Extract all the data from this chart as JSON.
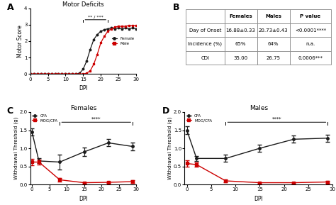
{
  "panel_A": {
    "title": "Motor Deficits",
    "xlabel": "DPI",
    "ylabel": "Motor Score",
    "ylim": [
      0,
      4
    ],
    "xlim": [
      0,
      30
    ],
    "xticks": [
      0,
      5,
      10,
      15,
      20,
      25,
      30
    ],
    "yticks": [
      0,
      1,
      2,
      3,
      4
    ],
    "female_x": [
      0,
      1,
      2,
      3,
      4,
      5,
      6,
      7,
      8,
      9,
      10,
      11,
      12,
      13,
      14,
      15,
      16,
      17,
      18,
      19,
      20,
      21,
      22,
      23,
      24,
      25,
      26,
      27,
      28,
      29,
      30
    ],
    "female_y": [
      0,
      0,
      0,
      0,
      0,
      0,
      0,
      0,
      0,
      0,
      0,
      0,
      0,
      0,
      0.05,
      0.3,
      0.8,
      1.5,
      2.1,
      2.4,
      2.6,
      2.7,
      2.75,
      2.8,
      2.75,
      2.8,
      2.75,
      2.8,
      2.75,
      2.8,
      2.75
    ],
    "male_x": [
      0,
      1,
      2,
      3,
      4,
      5,
      6,
      7,
      8,
      9,
      10,
      11,
      12,
      13,
      14,
      15,
      16,
      17,
      18,
      19,
      20,
      21,
      22,
      23,
      24,
      25,
      26,
      27,
      28,
      29,
      30
    ],
    "male_y": [
      0,
      0,
      0,
      0,
      0,
      0,
      0,
      0,
      0,
      0,
      0,
      0,
      0,
      0,
      0,
      0,
      0.05,
      0.2,
      0.6,
      1.2,
      1.9,
      2.3,
      2.6,
      2.75,
      2.85,
      2.9,
      2.9,
      2.9,
      2.95,
      2.95,
      2.95
    ],
    "female_color": "#1a1a1a",
    "male_color": "#cc0000",
    "bracket_x1": 15,
    "bracket_x2": 22,
    "bracket_y": 3.3,
    "bracket_label": "** / ***"
  },
  "panel_B": {
    "col_labels": [
      "Females",
      "Males",
      "P value"
    ],
    "row_labels": [
      "Day of Onset",
      "Incidence (%)",
      "CDI"
    ],
    "cell_data": [
      [
        "16.88±0.33",
        "20.73±0.43",
        "<0.0001****"
      ],
      [
        "65%",
        "64%",
        "n.a."
      ],
      [
        "35.00",
        "26.75",
        "0.0006***"
      ]
    ]
  },
  "panel_C": {
    "title": "Females",
    "xlabel": "DPI",
    "ylabel": "Withdrawal Threshold (g)",
    "ylim": [
      0,
      2.0
    ],
    "xlim": [
      -0.5,
      30
    ],
    "xticks": [
      0,
      5,
      10,
      15,
      20,
      25,
      30
    ],
    "yticks": [
      0.0,
      0.5,
      1.0,
      1.5,
      2.0
    ],
    "cfa_x": [
      0,
      2,
      8,
      15,
      22,
      29
    ],
    "cfa_y": [
      1.45,
      0.65,
      0.62,
      0.9,
      1.15,
      1.05
    ],
    "cfa_err": [
      0.1,
      0.07,
      0.2,
      0.12,
      0.1,
      0.1
    ],
    "mogcfa_x": [
      0,
      2,
      8,
      15,
      22,
      29
    ],
    "mogcfa_y": [
      0.62,
      0.62,
      0.13,
      0.05,
      0.06,
      0.08
    ],
    "mogcfa_err": [
      0.08,
      0.06,
      0.05,
      0.02,
      0.02,
      0.03
    ],
    "cfa_color": "#1a1a1a",
    "mogcfa_color": "#cc0000",
    "bracket_x1": 8,
    "bracket_x2": 29,
    "bracket_y": 1.72,
    "bracket_label": "****"
  },
  "panel_D": {
    "title": "Males",
    "xlabel": "DPI",
    "ylabel": "Withdrawal Threshold (g)",
    "ylim": [
      0,
      2.0
    ],
    "xlim": [
      -0.5,
      30
    ],
    "xticks": [
      0,
      5,
      10,
      15,
      20,
      25,
      30
    ],
    "yticks": [
      0.0,
      0.5,
      1.0,
      1.5,
      2.0
    ],
    "cfa_x": [
      0,
      2,
      8,
      15,
      22,
      29
    ],
    "cfa_y": [
      1.5,
      0.72,
      0.72,
      1.0,
      1.25,
      1.28
    ],
    "cfa_err": [
      0.1,
      0.07,
      0.1,
      0.1,
      0.1,
      0.1
    ],
    "mogcfa_x": [
      0,
      2,
      8,
      15,
      22,
      29
    ],
    "mogcfa_y": [
      0.58,
      0.55,
      0.1,
      0.05,
      0.05,
      0.07
    ],
    "mogcfa_err": [
      0.08,
      0.06,
      0.04,
      0.02,
      0.02,
      0.03
    ],
    "cfa_color": "#1a1a1a",
    "mogcfa_color": "#cc0000",
    "bracket_x1": 8,
    "bracket_x2": 29,
    "bracket_y": 1.72,
    "bracket_label": "****"
  }
}
